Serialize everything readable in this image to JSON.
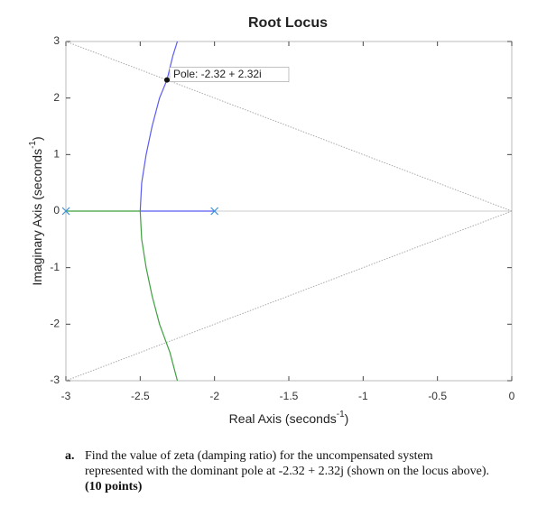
{
  "chart_data": {
    "type": "line",
    "title": "Root Locus",
    "xlabel": {
      "text": "Real Axis (seconds",
      "sup": "-1",
      "end": ")"
    },
    "ylabel": {
      "text": "Imaginary Axis (seconds",
      "sup": "-1",
      "end": ")"
    },
    "xlim": [
      -3,
      0
    ],
    "ylim": [
      -3,
      3
    ],
    "xticks": [
      -3,
      -2.5,
      -2,
      -1.5,
      -1,
      -0.5,
      0
    ],
    "yticks": [
      -3,
      -2,
      -1,
      0,
      1,
      2,
      3
    ],
    "hline": 0,
    "series": [
      {
        "color": "#5b5bf0",
        "x": [
          -2,
          -2.5,
          -2.49,
          -2.46,
          -2.42,
          -2.37,
          -2.32,
          -2.28,
          -2.25
        ],
        "values": [
          0,
          0,
          0.5,
          1,
          1.5,
          2,
          2.32,
          2.75,
          3
        ]
      },
      {
        "color": "#3fa03f",
        "x": [
          -3,
          -2.5,
          -2.49,
          -2.46,
          -2.42,
          -2.37,
          -2.3,
          -2.25
        ],
        "values": [
          0,
          0,
          -0.5,
          -1,
          -1.5,
          -2,
          -2.5,
          -3
        ]
      }
    ],
    "poles": {
      "color": "#3d8fd6",
      "x": [
        -3,
        -2
      ],
      "values": [
        0,
        0
      ]
    },
    "guides": {
      "color": "#aaaaaa",
      "lines": [
        {
          "x": [
            0,
            -3
          ],
          "values": [
            0,
            3
          ]
        },
        {
          "x": [
            0,
            -3
          ],
          "values": [
            0,
            -3
          ]
        }
      ]
    },
    "annotation": {
      "text": "Pole: -2.32 + 2.32i",
      "x": -2.32,
      "y": 2.32
    }
  },
  "question": {
    "label": "a.",
    "text": "Find the value of zeta (damping ratio) for the uncompensated system represented with the dominant pole at -2.32 + 2.32j (shown on the locus above).",
    "points": "(10 points)"
  }
}
